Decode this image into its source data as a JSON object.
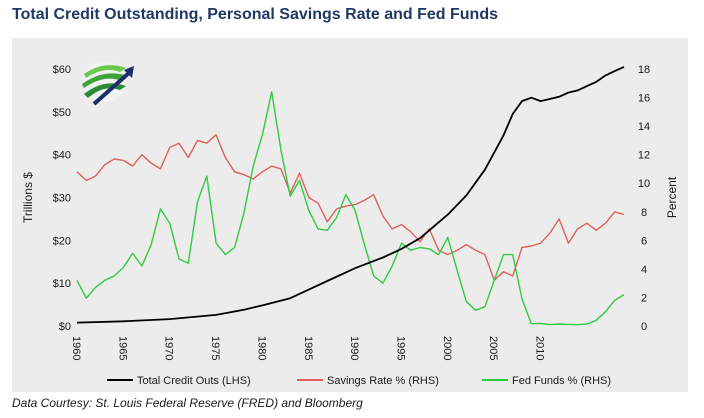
{
  "page": {
    "title": "Total Credit Outstanding, Personal Savings Rate and Fed Funds",
    "footer": "Data Courtesy: St. Louis Federal Reserve (FRED) and Bloomberg",
    "title_color": "#1f3864"
  },
  "logo": {
    "icon": "globe-arrow-logo-icon"
  },
  "chart_data": {
    "type": "line",
    "title": "Total Credit Outstanding, Personal Savings Rate and Fed Funds",
    "ylabel_left": "Trillions $",
    "ylabel_right": "Percent",
    "ylim_left": [
      0,
      60
    ],
    "ylim_right": [
      0,
      18
    ],
    "yticks_left": [
      "$0",
      "$10",
      "$20",
      "$30",
      "$40",
      "$50",
      "$60"
    ],
    "yticks_right": [
      "0",
      "2",
      "4",
      "6",
      "8",
      "10",
      "12",
      "14",
      "16",
      "18"
    ],
    "xlim": [
      1960,
      2019
    ],
    "xticks": [
      "1960",
      "1965",
      "1970",
      "1975",
      "1980",
      "1985",
      "1990",
      "1995",
      "2000",
      "2005",
      "2010"
    ],
    "grid": false,
    "legend_position": "bottom",
    "series": [
      {
        "name": "Total Credit Outs (LHS)",
        "axis": "left",
        "color": "#000000",
        "x": [
          1960,
          1965,
          1970,
          1975,
          1978,
          1980,
          1983,
          1985,
          1987,
          1990,
          1993,
          1995,
          1997,
          2000,
          2002,
          2004,
          2006,
          2007,
          2008,
          2009,
          2010,
          2011,
          2012,
          2013,
          2014,
          2015,
          2016,
          2017,
          2018,
          2019
        ],
        "values": [
          0.8,
          1.1,
          1.6,
          2.6,
          3.8,
          4.8,
          6.5,
          8.5,
          10.5,
          13.5,
          16,
          18,
          20.5,
          26,
          30.5,
          36.5,
          44.5,
          49.5,
          52.5,
          53.3,
          52.5,
          53,
          53.5,
          54.5,
          55,
          56,
          57,
          58.5,
          59.5,
          60.5
        ]
      },
      {
        "name": "Savings Rate % (RHS)",
        "axis": "right",
        "color": "#e0605a",
        "x": [
          1960,
          1961,
          1962,
          1963,
          1964,
          1965,
          1966,
          1967,
          1968,
          1969,
          1970,
          1971,
          1972,
          1973,
          1974,
          1975,
          1976,
          1977,
          1978,
          1979,
          1980,
          1981,
          1982,
          1983,
          1984,
          1985,
          1986,
          1987,
          1988,
          1989,
          1990,
          1991,
          1992,
          1993,
          1994,
          1995,
          1996,
          1997,
          1998,
          1999,
          2000,
          2001,
          2002,
          2003,
          2004,
          2005,
          2006,
          2007,
          2008,
          2009,
          2010,
          2011,
          2012,
          2013,
          2014,
          2015,
          2016,
          2017,
          2018,
          2019
        ],
        "values": [
          10.8,
          10.2,
          10.5,
          11.3,
          11.7,
          11.6,
          11.2,
          12.0,
          11.4,
          11.0,
          12.5,
          12.8,
          11.8,
          13.0,
          12.8,
          13.4,
          11.8,
          10.8,
          10.6,
          10.3,
          10.8,
          11.2,
          11.0,
          9.3,
          10.7,
          9.0,
          8.6,
          7.3,
          8.2,
          8.4,
          8.5,
          8.8,
          9.2,
          7.7,
          6.8,
          7.1,
          6.6,
          5.9,
          6.8,
          5.3,
          5.0,
          5.3,
          5.7,
          5.3,
          5.0,
          3.2,
          3.8,
          3.5,
          5.5,
          5.6,
          5.8,
          6.5,
          7.5,
          5.8,
          6.8,
          7.2,
          6.7,
          7.2,
          8.0,
          7.8
        ]
      },
      {
        "name": "Fed Funds % (RHS)",
        "axis": "right",
        "color": "#2ecc40",
        "x": [
          1960,
          1961,
          1962,
          1963,
          1964,
          1965,
          1966,
          1967,
          1968,
          1969,
          1970,
          1971,
          1972,
          1973,
          1974,
          1975,
          1976,
          1977,
          1978,
          1979,
          1980,
          1981,
          1982,
          1983,
          1984,
          1985,
          1986,
          1987,
          1988,
          1989,
          1990,
          1991,
          1992,
          1993,
          1994,
          1995,
          1996,
          1997,
          1998,
          1999,
          2000,
          2001,
          2002,
          2003,
          2004,
          2005,
          2006,
          2007,
          2008,
          2009,
          2010,
          2011,
          2012,
          2013,
          2014,
          2015,
          2016,
          2017,
          2018,
          2019
        ],
        "values": [
          3.2,
          1.95,
          2.7,
          3.2,
          3.5,
          4.1,
          5.1,
          4.2,
          5.7,
          8.2,
          7.2,
          4.7,
          4.4,
          8.7,
          10.5,
          5.8,
          5.0,
          5.5,
          7.9,
          11.2,
          13.4,
          16.4,
          12.3,
          9.1,
          10.2,
          8.1,
          6.8,
          6.7,
          7.6,
          9.2,
          8.1,
          5.7,
          3.5,
          3.0,
          4.2,
          5.8,
          5.3,
          5.5,
          5.4,
          5.0,
          6.2,
          3.9,
          1.7,
          1.1,
          1.35,
          3.2,
          5.0,
          5.0,
          1.9,
          0.16,
          0.18,
          0.1,
          0.14,
          0.11,
          0.09,
          0.13,
          0.4,
          1.0,
          1.8,
          2.2
        ]
      }
    ]
  }
}
